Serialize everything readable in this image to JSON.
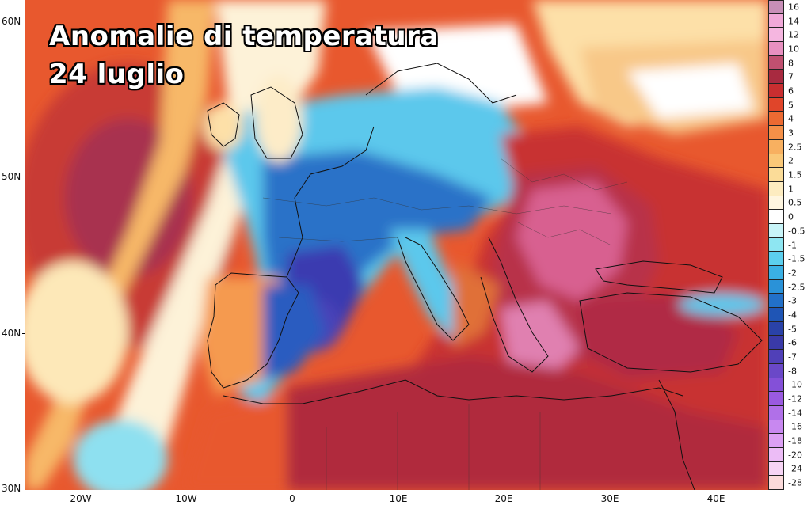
{
  "title": {
    "line1": "Anomalie di temperatura",
    "line2": "24 luglio"
  },
  "axes": {
    "lat_labels": [
      "60N",
      "50N",
      "40N",
      "30N"
    ],
    "lon_labels": [
      "20W",
      "10W",
      "0",
      "10E",
      "20E",
      "30E",
      "40E"
    ]
  },
  "legend": {
    "labels": [
      "16",
      "14",
      "12",
      "10",
      "8",
      "7",
      "6",
      "5",
      "4",
      "3",
      "2.5",
      "2",
      "1.5",
      "1",
      "0.5",
      "0",
      "-0.5",
      "-1",
      "-1.5",
      "-2",
      "-2.5",
      "-3",
      "-4",
      "-5",
      "-6",
      "-7",
      "-8",
      "-10",
      "-12",
      "-14",
      "-16",
      "-18",
      "-20",
      "-24",
      "-28"
    ],
    "colors": [
      "#c88fb8",
      "#f0a8d8",
      "#f5b6e0",
      "#e890c0",
      "#c05070",
      "#a82a40",
      "#c82e30",
      "#e0452a",
      "#ec6a32",
      "#f59048",
      "#f8b060",
      "#fac878",
      "#fbdc98",
      "#fdecc0",
      "#fff6e0",
      "#ffffff",
      "#c8f4f8",
      "#8ee6f2",
      "#5ccfee",
      "#3ab0e4",
      "#2a92d8",
      "#2270c8",
      "#1f55b5",
      "#2a42a8",
      "#3a3aa8",
      "#5040b8",
      "#6a48c8",
      "#8450d8",
      "#9a5ae0",
      "#b070e8",
      "#c888f0",
      "#dca0f4",
      "#ecbcf6",
      "#f6d4f4",
      "#fbdada"
    ]
  },
  "map": {
    "region": "Europe, North Africa, Middle East",
    "colors": {
      "sea_hot": "#d8402c",
      "land_hot": "#b02840",
      "extreme_hot": "#e070a0",
      "cold": "#2a5cc0",
      "very_cold": "#3a3aa8",
      "neutral": "#ffffff"
    }
  }
}
